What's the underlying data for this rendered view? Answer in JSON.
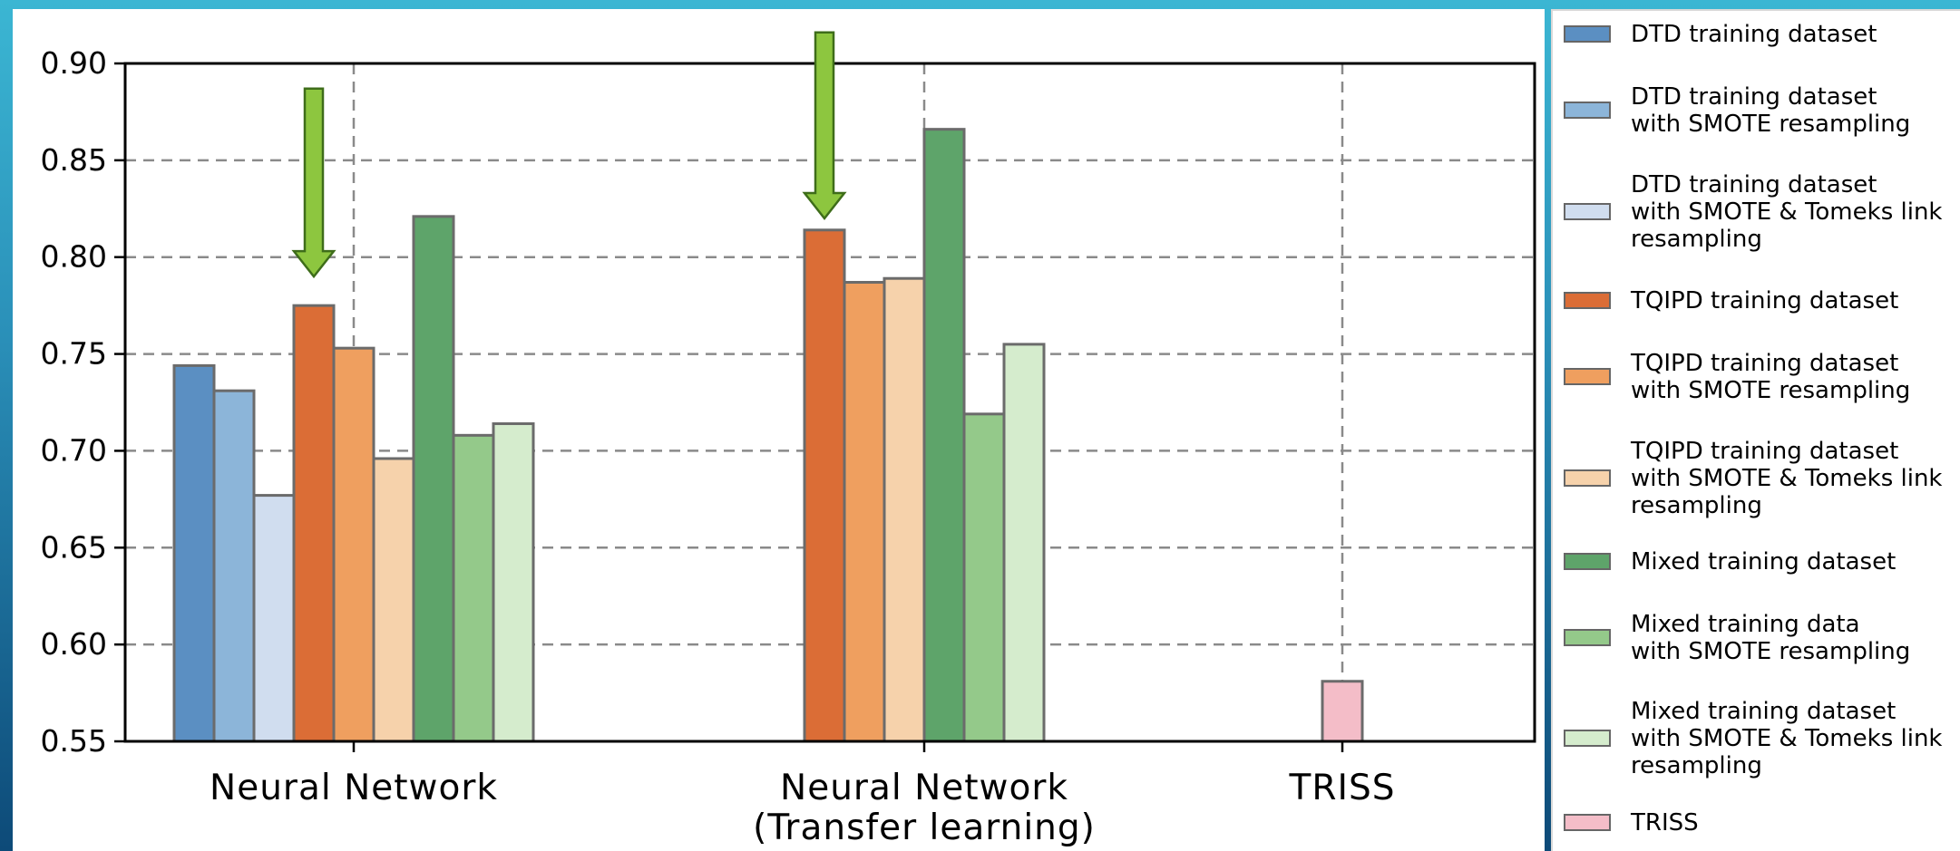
{
  "chart_data": {
    "type": "bar",
    "categories": [
      "Neural Network",
      "Neural Network\n(Transfer learning)",
      "TRISS"
    ],
    "ylim": [
      0.55,
      0.9
    ],
    "yticks": [
      "0.55",
      "0.60",
      "0.65",
      "0.70",
      "0.75",
      "0.80",
      "0.85",
      "0.90"
    ],
    "grid": true,
    "legend_position": "right",
    "series": [
      {
        "name": "DTD training dataset",
        "color": "#5b8fc2",
        "values": [
          0.744,
          null,
          null
        ]
      },
      {
        "name": "DTD training dataset\nwith SMOTE resampling",
        "color": "#8cb5d9",
        "values": [
          0.731,
          null,
          null
        ]
      },
      {
        "name": "DTD training dataset\nwith SMOTE & Tomeks link\nresampling",
        "color": "#d0ddef",
        "values": [
          0.677,
          null,
          null
        ]
      },
      {
        "name": "TQIPD training dataset",
        "color": "#db6d36",
        "values": [
          0.775,
          0.814,
          null
        ]
      },
      {
        "name": "TQIPD training dataset\nwith SMOTE resampling",
        "color": "#ef9f5f",
        "values": [
          0.753,
          0.787,
          null
        ]
      },
      {
        "name": "TQIPD training dataset\nwith SMOTE & Tomeks link\nresampling",
        "color": "#f6d2ab",
        "values": [
          0.696,
          0.789,
          null
        ]
      },
      {
        "name": "Mixed training dataset",
        "color": "#5ea46a",
        "values": [
          0.821,
          0.866,
          null
        ]
      },
      {
        "name": "Mixed training data\nwith SMOTE resampling",
        "color": "#94c98a",
        "values": [
          0.708,
          0.719,
          null
        ]
      },
      {
        "name": "Mixed training dataset\nwith SMOTE & Tomeks link\nresampling",
        "color": "#d5eccd",
        "values": [
          0.714,
          0.755,
          null
        ]
      },
      {
        "name": "TRISS",
        "color": "#f4bdc8",
        "values": [
          null,
          null,
          0.581
        ]
      }
    ],
    "annotations": [
      {
        "type": "arrow",
        "color": "#8dc63f",
        "category": 0,
        "series": 3,
        "from_y": 0.887,
        "to_y": 0.79
      },
      {
        "type": "arrow",
        "color": "#8dc63f",
        "category": 1,
        "series": 3,
        "from_y": 0.916,
        "to_y": 0.82
      }
    ]
  }
}
